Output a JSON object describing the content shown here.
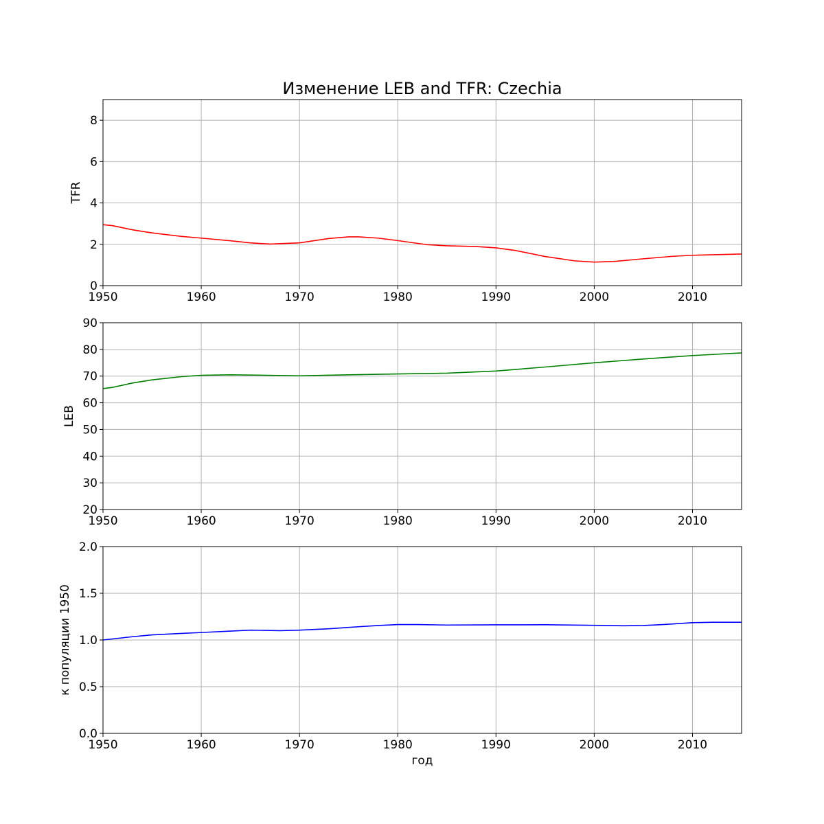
{
  "title": "Изменение LEB and TFR: Czechia",
  "chart_data": [
    {
      "type": "line",
      "ylabel": "TFR",
      "xlabel": "",
      "xlim": [
        1950,
        2015
      ],
      "ylim": [
        0,
        9
      ],
      "xticks": [
        1950,
        1960,
        1970,
        1980,
        1990,
        2000,
        2010
      ],
      "yticks": [
        0,
        2,
        4,
        6,
        8
      ],
      "grid": true,
      "color": "#ff0000",
      "series": [
        {
          "x": [
            1950,
            1951,
            1953,
            1955,
            1958,
            1960,
            1963,
            1965,
            1967,
            1970,
            1973,
            1975,
            1976,
            1978,
            1980,
            1983,
            1985,
            1988,
            1990,
            1992,
            1995,
            1998,
            2000,
            2002,
            2005,
            2008,
            2010,
            2015
          ],
          "y": [
            2.95,
            2.9,
            2.7,
            2.55,
            2.38,
            2.3,
            2.17,
            2.07,
            2.01,
            2.07,
            2.28,
            2.36,
            2.36,
            2.3,
            2.18,
            1.98,
            1.93,
            1.89,
            1.83,
            1.7,
            1.41,
            1.2,
            1.14,
            1.17,
            1.3,
            1.42,
            1.47,
            1.53
          ]
        }
      ]
    },
    {
      "type": "line",
      "ylabel": "LEB",
      "xlabel": "",
      "xlim": [
        1950,
        2015
      ],
      "ylim": [
        20,
        90
      ],
      "xticks": [
        1950,
        1960,
        1970,
        1980,
        1990,
        2000,
        2010
      ],
      "yticks": [
        20,
        30,
        40,
        50,
        60,
        70,
        80,
        90
      ],
      "grid": true,
      "color": "#008000",
      "series": [
        {
          "x": [
            1950,
            1951,
            1953,
            1955,
            1958,
            1960,
            1963,
            1965,
            1970,
            1975,
            1980,
            1985,
            1990,
            1995,
            2000,
            2005,
            2010,
            2015
          ],
          "y": [
            65.3,
            65.8,
            67.4,
            68.6,
            69.8,
            70.3,
            70.5,
            70.4,
            70.1,
            70.5,
            70.8,
            71.1,
            71.9,
            73.4,
            75.0,
            76.4,
            77.7,
            78.7
          ]
        }
      ]
    },
    {
      "type": "line",
      "ylabel": "к популяции 1950",
      "xlabel": "год",
      "xlim": [
        1950,
        2015
      ],
      "ylim": [
        0,
        2
      ],
      "xticks": [
        1950,
        1960,
        1970,
        1980,
        1990,
        2000,
        2010
      ],
      "yticks": [
        0.0,
        0.5,
        1.0,
        1.5,
        2.0
      ],
      "grid": true,
      "color": "#0000ff",
      "series": [
        {
          "x": [
            1950,
            1953,
            1955,
            1958,
            1960,
            1963,
            1965,
            1968,
            1970,
            1973,
            1975,
            1978,
            1980,
            1982,
            1985,
            1990,
            1995,
            2000,
            2003,
            2005,
            2007,
            2010,
            2012,
            2015
          ],
          "y": [
            1.0,
            1.035,
            1.055,
            1.07,
            1.08,
            1.095,
            1.105,
            1.1,
            1.105,
            1.12,
            1.135,
            1.155,
            1.165,
            1.165,
            1.16,
            1.162,
            1.163,
            1.157,
            1.152,
            1.155,
            1.165,
            1.185,
            1.19,
            1.19
          ]
        }
      ]
    }
  ]
}
